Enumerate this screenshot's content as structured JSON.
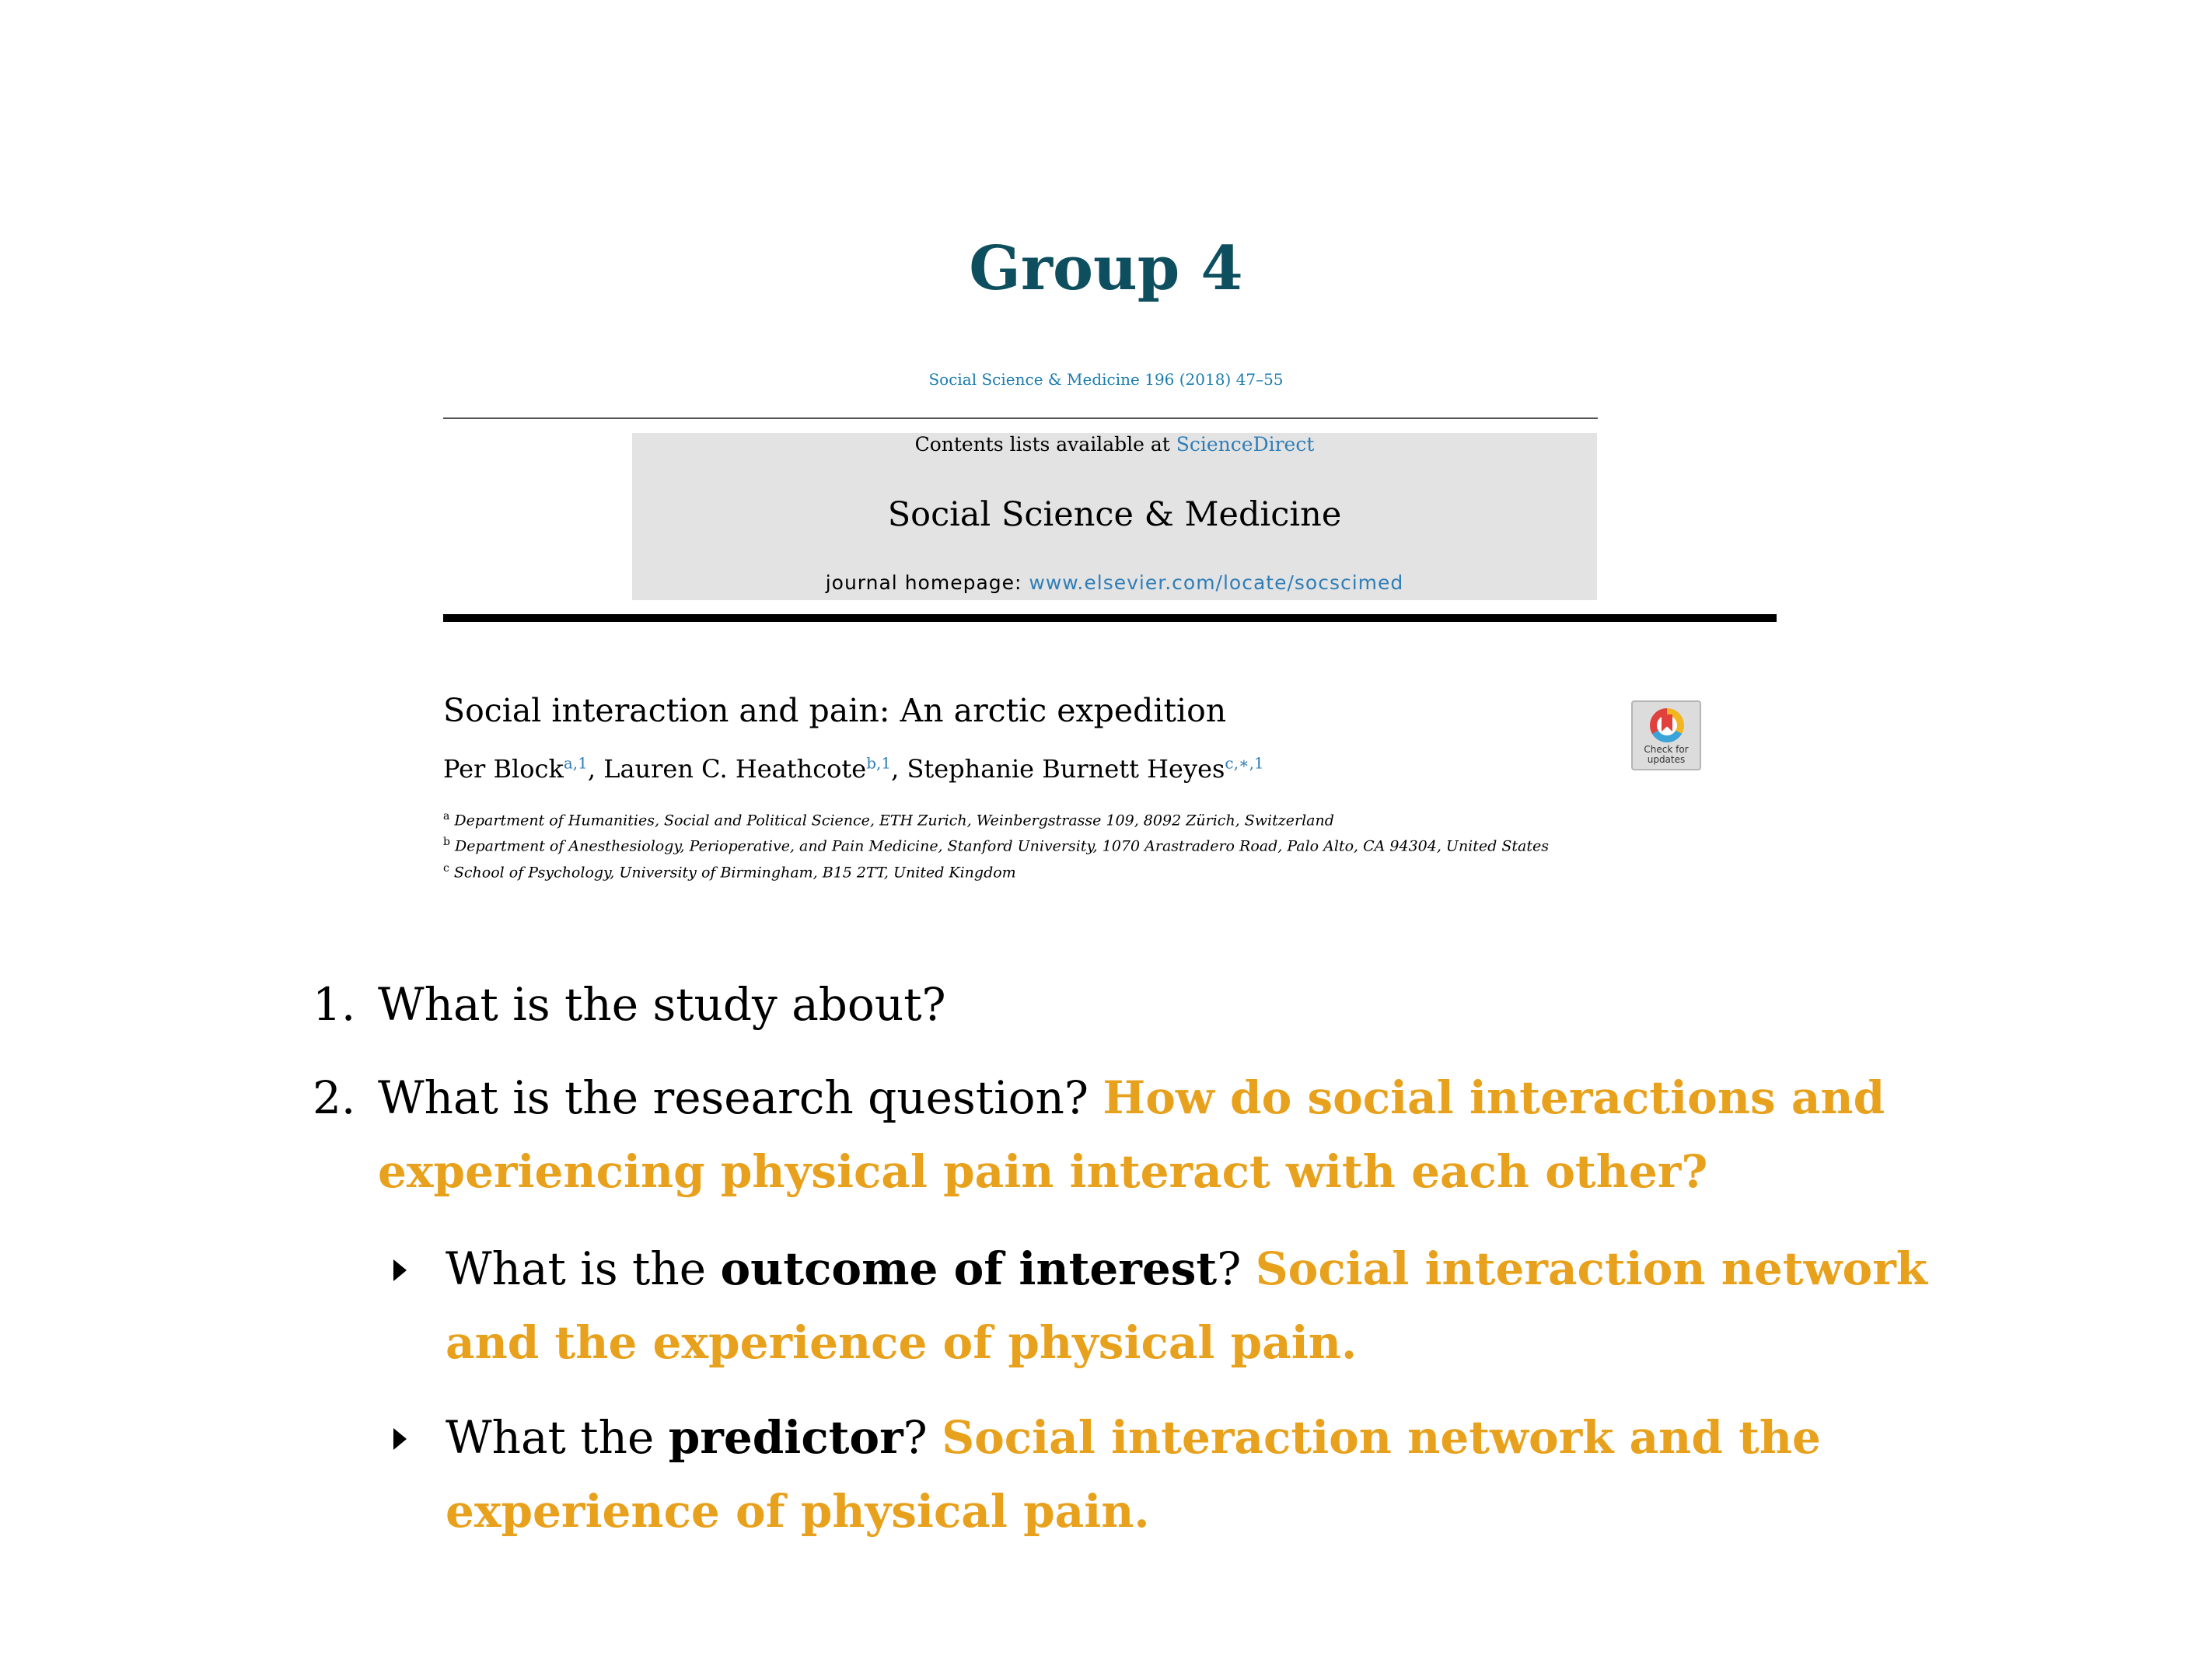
{
  "slide": {
    "title": "Group 4"
  },
  "article": {
    "citation": "Social Science & Medicine 196 (2018) 47–55",
    "contents_prefix": "Contents lists available at",
    "contents_link": "ScienceDirect",
    "journal_name": "Social Science & Medicine",
    "homepage_prefix": "journal homepage:",
    "homepage_link": "www.elsevier.com/locate/socscimed",
    "title": "Social interaction and pain: An arctic expedition",
    "authors": [
      {
        "name": "Per Block",
        "marks": "a,1"
      },
      {
        "name": "Lauren C. Heathcote",
        "marks": "b,1"
      },
      {
        "name": "Stephanie Burnett Heyes",
        "marks": "c,∗,1"
      }
    ],
    "affiliations": [
      {
        "key": "a",
        "text": "Department of Humanities, Social and Political Science, ETH Zurich, Weinbergstrasse 109, 8092 Zürich, Switzerland"
      },
      {
        "key": "b",
        "text": "Department of Anesthesiology, Perioperative, and Pain Medicine, Stanford University, 1070 Arastradero Road, Palo Alto, CA 94304, United States"
      },
      {
        "key": "c",
        "text": "School of Psychology, University of Birmingham, B15 2TT, United Kingdom"
      }
    ],
    "check_updates_label": [
      "Check for",
      "updates"
    ]
  },
  "questions": [
    {
      "number": "1.",
      "text": "What is the study about?"
    },
    {
      "number": "2.",
      "text": "What is the research question?",
      "answer_line1": "How do social interactions and",
      "answer_line2": "experiencing physical pain interact with each other?"
    }
  ],
  "subquestions": [
    {
      "prefix": "What is the",
      "bold": "outcome of interest",
      "suffix": "?",
      "answer_line1": "Social interaction network",
      "answer_line2": "and the experience of physical pain."
    },
    {
      "prefix": "What the",
      "bold": "predictor",
      "suffix": "?",
      "answer_line1": "Social interaction network and the",
      "answer_line2": "experience of physical pain."
    }
  ],
  "colors": {
    "title": "#0e4f5f",
    "answer": "#e8a11c",
    "link": "#2f7eb8"
  }
}
